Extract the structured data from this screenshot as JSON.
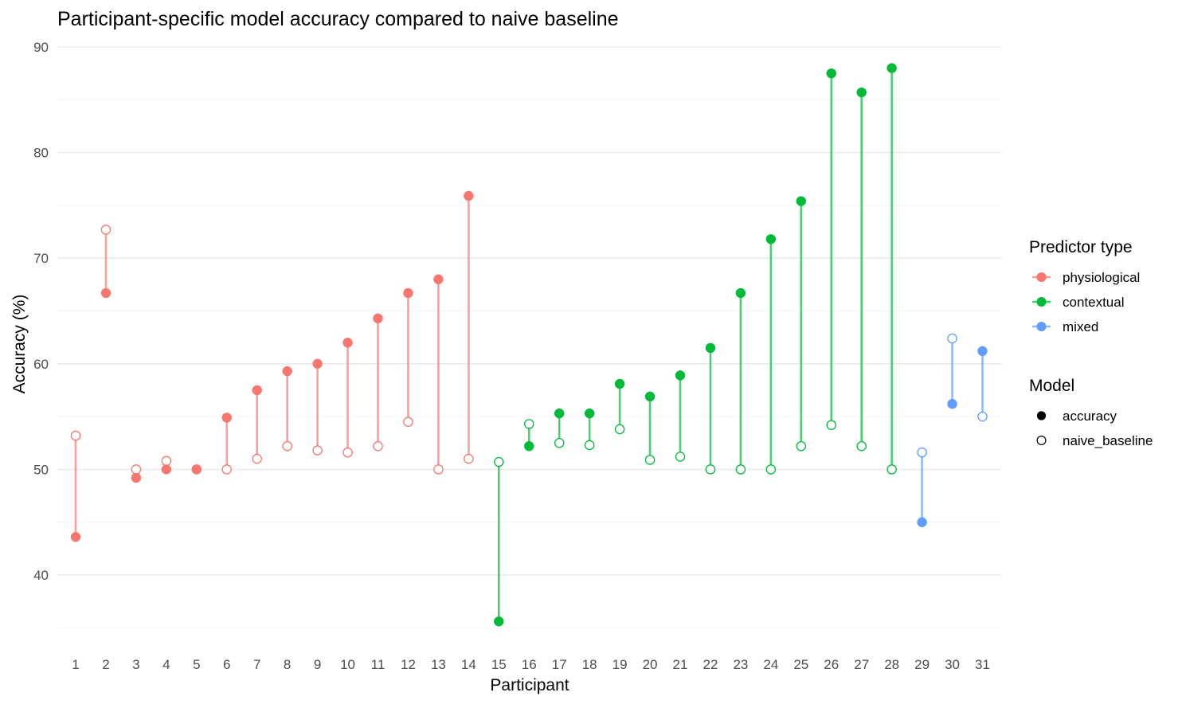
{
  "chart_data": {
    "type": "dumbbell",
    "title": "Participant-specific model accuracy compared to naive baseline",
    "xlabel": "Participant",
    "ylabel": "Accuracy (%)",
    "ylim": [
      34.5,
      91.5
    ],
    "yticks": [
      40,
      50,
      60,
      70,
      80,
      90
    ],
    "grid": true,
    "legend_position": "right",
    "legends": {
      "predictor": {
        "title": "Predictor type",
        "entries": [
          {
            "key": "physiological",
            "label": "physiological",
            "color": "#F8766D"
          },
          {
            "key": "contextual",
            "label": "contextual",
            "color": "#00BA38"
          },
          {
            "key": "mixed",
            "label": "mixed",
            "color": "#619CFF"
          }
        ]
      },
      "model": {
        "title": "Model",
        "entries": [
          {
            "key": "accuracy",
            "label": "accuracy",
            "shape": "filled-circle"
          },
          {
            "key": "naive_baseline",
            "label": "naive_baseline",
            "shape": "open-circle"
          }
        ]
      }
    },
    "participants": [
      {
        "id": "1",
        "type": "physiological",
        "accuracy": 43.6,
        "naive_baseline": 53.2
      },
      {
        "id": "2",
        "type": "physiological",
        "accuracy": 66.7,
        "naive_baseline": 72.7
      },
      {
        "id": "3",
        "type": "physiological",
        "accuracy": 49.2,
        "naive_baseline": 50.0
      },
      {
        "id": "4",
        "type": "physiological",
        "accuracy": 50.0,
        "naive_baseline": 50.8
      },
      {
        "id": "5",
        "type": "physiological",
        "accuracy": 50.0,
        "naive_baseline": 50.0
      },
      {
        "id": "6",
        "type": "physiological",
        "accuracy": 54.9,
        "naive_baseline": 50.0
      },
      {
        "id": "7",
        "type": "physiological",
        "accuracy": 57.5,
        "naive_baseline": 51.0
      },
      {
        "id": "8",
        "type": "physiological",
        "accuracy": 59.3,
        "naive_baseline": 52.2
      },
      {
        "id": "9",
        "type": "physiological",
        "accuracy": 60.0,
        "naive_baseline": 51.8
      },
      {
        "id": "10",
        "type": "physiological",
        "accuracy": 62.0,
        "naive_baseline": 51.6
      },
      {
        "id": "11",
        "type": "physiological",
        "accuracy": 64.3,
        "naive_baseline": 52.2
      },
      {
        "id": "12",
        "type": "physiological",
        "accuracy": 66.7,
        "naive_baseline": 54.5
      },
      {
        "id": "13",
        "type": "physiological",
        "accuracy": 68.0,
        "naive_baseline": 50.0
      },
      {
        "id": "14",
        "type": "physiological",
        "accuracy": 75.9,
        "naive_baseline": 51.0
      },
      {
        "id": "15",
        "type": "contextual",
        "accuracy": 35.6,
        "naive_baseline": 50.7
      },
      {
        "id": "16",
        "type": "contextual",
        "accuracy": 52.2,
        "naive_baseline": 54.3
      },
      {
        "id": "17",
        "type": "contextual",
        "accuracy": 55.3,
        "naive_baseline": 52.5
      },
      {
        "id": "18",
        "type": "contextual",
        "accuracy": 55.3,
        "naive_baseline": 52.3
      },
      {
        "id": "19",
        "type": "contextual",
        "accuracy": 58.1,
        "naive_baseline": 53.8
      },
      {
        "id": "20",
        "type": "contextual",
        "accuracy": 56.9,
        "naive_baseline": 50.9
      },
      {
        "id": "21",
        "type": "contextual",
        "accuracy": 58.9,
        "naive_baseline": 51.2
      },
      {
        "id": "22",
        "type": "contextual",
        "accuracy": 61.5,
        "naive_baseline": 50.0
      },
      {
        "id": "23",
        "type": "contextual",
        "accuracy": 66.7,
        "naive_baseline": 50.0
      },
      {
        "id": "24",
        "type": "contextual",
        "accuracy": 71.8,
        "naive_baseline": 50.0
      },
      {
        "id": "25",
        "type": "contextual",
        "accuracy": 75.4,
        "naive_baseline": 52.2
      },
      {
        "id": "26",
        "type": "contextual",
        "accuracy": 87.5,
        "naive_baseline": 54.2
      },
      {
        "id": "27",
        "type": "contextual",
        "accuracy": 85.7,
        "naive_baseline": 52.2
      },
      {
        "id": "28",
        "type": "contextual",
        "accuracy": 88.0,
        "naive_baseline": 50.0
      },
      {
        "id": "29",
        "type": "mixed",
        "accuracy": 45.0,
        "naive_baseline": 51.6
      },
      {
        "id": "30",
        "type": "mixed",
        "accuracy": 56.2,
        "naive_baseline": 62.4
      },
      {
        "id": "31",
        "type": "mixed",
        "accuracy": 61.2,
        "naive_baseline": 55.0
      }
    ]
  }
}
